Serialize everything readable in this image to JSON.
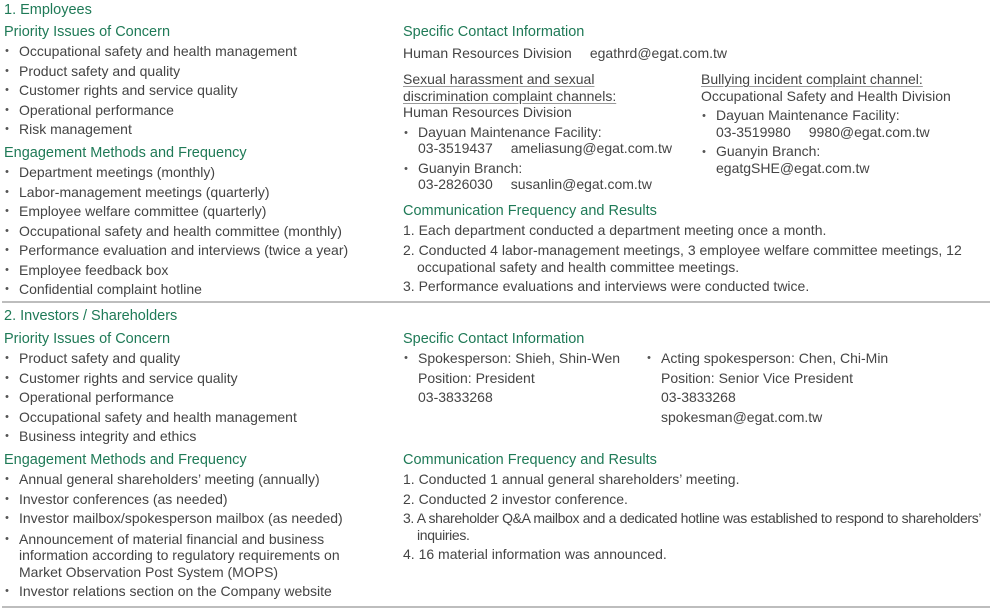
{
  "colors": {
    "heading": "#1f7a57",
    "text": "#444444",
    "separator": "#bdbdbd"
  },
  "employees": {
    "title": "1. Employees",
    "priority_heading": "Priority Issues of Concern",
    "priority": [
      "Occupational safety and health management",
      "Product safety and quality",
      "Customer rights and service quality",
      "Operational performance",
      "Risk management"
    ],
    "engagement_heading": "Engagement Methods and Frequency",
    "engagement": [
      "Department meetings (monthly)",
      "Labor-management meetings (quarterly)",
      "Employee welfare committee (quarterly)",
      "Occupational safety and health committee (monthly)",
      "Performance evaluation and interviews (twice a year)",
      "Employee feedback box",
      "Confidential complaint hotline"
    ],
    "contact_heading": "Specific Contact Information",
    "contact_division": "Human Resources Division",
    "contact_email": "egathrd@egat.com.tw",
    "harassment": {
      "title_line1": "Sexual harassment and sexual",
      "title_line2": "discrimination complaint channels:",
      "division": "Human Resources Division",
      "entries": [
        {
          "name": "Dayuan Maintenance Facility:",
          "phone": "03-3519437",
          "email": "ameliasung@egat.com.tw"
        },
        {
          "name": "Guanyin Branch:",
          "phone": "03-2826030",
          "email": "susanlin@egat.com.tw"
        }
      ]
    },
    "bullying": {
      "title": "Bullying incident complaint channel:",
      "division": "Occupational Safety and Health Division",
      "entries": [
        {
          "name": "Dayuan Maintenance Facility:",
          "phone": "03-3519980",
          "email": "9980@egat.com.tw"
        },
        {
          "name": "Guanyin Branch:",
          "email": "egatgSHE@egat.com.tw"
        }
      ]
    },
    "results_heading": "Communication Frequency and Results",
    "results": [
      "1. Each department conducted a department meeting once a month.",
      "2. Conducted 4 labor-management meetings, 3 employee welfare committee meetings, 12 occupational safety and health committee meetings.",
      "3. Performance evaluations and interviews were conducted twice."
    ]
  },
  "investors": {
    "title": "2. Investors / Shareholders",
    "priority_heading": "Priority Issues of Concern",
    "priority": [
      "Product safety and quality",
      "Customer rights and service quality",
      "Operational performance",
      "Occupational safety and health management",
      "Business integrity and ethics"
    ],
    "engagement_heading": "Engagement Methods and Frequency",
    "engagement": [
      "Annual general shareholders’ meeting (annually)",
      "Investor conferences (as needed)",
      "Investor mailbox/spokesperson mailbox (as needed)",
      "Announcement of material financial and business information according to regulatory requirements on Market Observation Post System (MOPS)",
      "Investor relations section on the Company website"
    ],
    "contact_heading": "Specific Contact Information",
    "spokesperson": {
      "name": "Spokesperson: Shieh, Shin-Wen",
      "position": "Position: President",
      "phone": "03-3833268"
    },
    "acting": {
      "name": "Acting spokesperson: Chen, Chi-Min",
      "position": "Position: Senior Vice President",
      "phone": "03-3833268",
      "email": "spokesman@egat.com.tw"
    },
    "results_heading": "Communication Frequency and Results",
    "results": [
      "1. Conducted 1 annual general shareholders’ meeting.",
      "2. Conducted 2 investor conference.",
      "3. A shareholder Q&A mailbox and a dedicated hotline was established to respond to shareholders’ inquiries.",
      "4. 16 material information was announced."
    ]
  }
}
